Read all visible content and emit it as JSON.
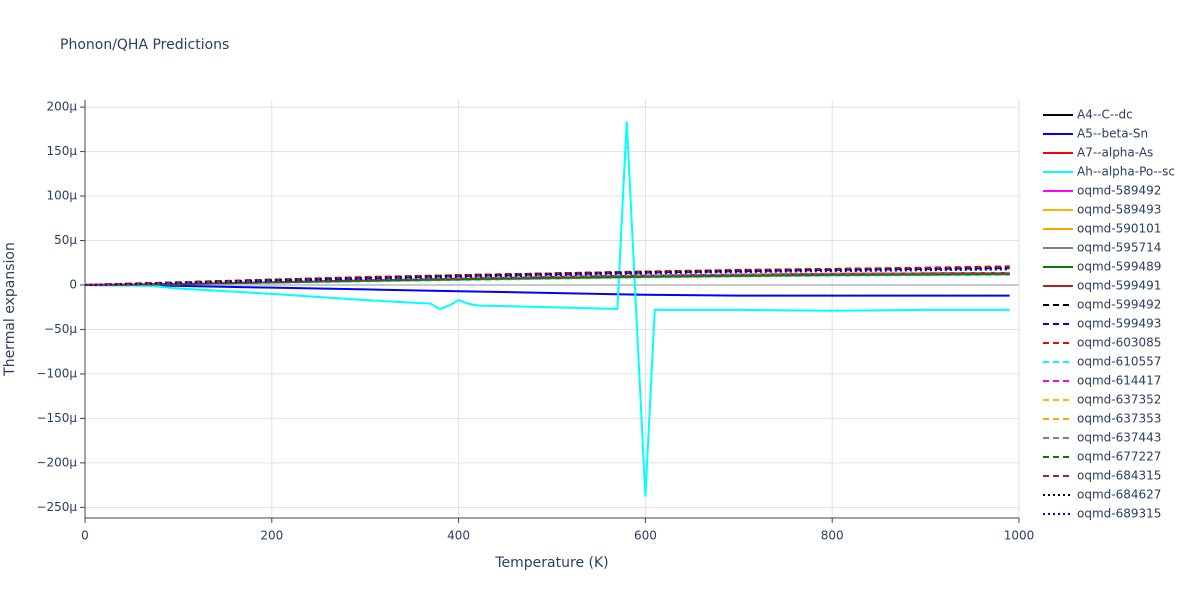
{
  "chart_data": {
    "type": "line",
    "title": "Phonon/QHA Predictions",
    "x_label": "Temperature (K)",
    "y_label": "Thermal expansion",
    "xlim": [
      0,
      1000
    ],
    "xticks": [
      0,
      200,
      400,
      600,
      800,
      1000
    ],
    "ylim": [
      -0.000262,
      0.000208
    ],
    "yticks": [
      {
        "value": 0.0002,
        "label": "200μ"
      },
      {
        "value": 0.00015,
        "label": "150μ"
      },
      {
        "value": 0.0001,
        "label": "100μ"
      },
      {
        "value": 5e-05,
        "label": "50μ"
      },
      0,
      {
        "value": -5e-05,
        "label": "−50μ"
      },
      {
        "value": -0.0001,
        "label": "−100μ"
      },
      {
        "value": -0.00015,
        "label": "−150μ"
      },
      {
        "value": -0.0002,
        "label": "−200μ"
      },
      {
        "value": -0.00025,
        "label": "−250μ"
      }
    ],
    "grid": true,
    "legend": "right",
    "x": [
      0,
      100,
      200,
      300,
      400,
      500,
      600,
      700,
      800,
      900,
      990
    ],
    "series": [
      {
        "name": "A4--C--dc",
        "color": "#000000",
        "dash": "solid",
        "values": [
          0,
          1e-06,
          3e-06,
          5e-06,
          6.5e-06,
          8e-06,
          9.5e-06,
          1.05e-05,
          1.15e-05,
          1.2e-05,
          1.25e-05
        ]
      },
      {
        "name": "A5--beta-Sn",
        "color": "#0000ff",
        "dash": "solid",
        "values": [
          0,
          -1e-06,
          -3e-06,
          -5e-06,
          -7e-06,
          -9e-06,
          -1.1e-05,
          -1.2e-05,
          -1.2e-05,
          -1.2e-05,
          -1.2e-05
        ]
      },
      {
        "name": "A7--alpha-As",
        "color": "#ff0000",
        "dash": "solid",
        "values": [
          0,
          1e-06,
          3e-06,
          5e-06,
          7e-06,
          8.5e-06,
          1e-05,
          1.1e-05,
          1.2e-05,
          1.25e-05,
          1.3e-05
        ]
      },
      {
        "name": "Ah--alpha-Po--sc",
        "color": "#00ffff",
        "dash": "solid",
        "x": [
          0,
          70,
          100,
          200,
          300,
          370,
          380,
          390,
          400,
          410,
          420,
          500,
          570,
          580,
          600,
          610,
          700,
          800,
          900,
          990
        ],
        "values": [
          0,
          -1e-06,
          -4e-06,
          -1e-05,
          -1.7e-05,
          -2.1e-05,
          -2.7e-05,
          -2.3e-05,
          -1.7e-05,
          -2.1e-05,
          -2.3e-05,
          -2.5e-05,
          -2.7e-05,
          0.000184,
          -0.000238,
          -2.8e-05,
          -2.8e-05,
          -2.9e-05,
          -2.8e-05,
          -2.8e-05
        ]
      },
      {
        "name": "oqmd-589492",
        "color": "#ff00ff",
        "dash": "solid",
        "values": [
          0,
          1e-06,
          3e-06,
          5e-06,
          7e-06,
          9e-06,
          1.05e-05,
          1.15e-05,
          1.25e-05,
          1.3e-05,
          1.35e-05
        ]
      },
      {
        "name": "oqmd-589493",
        "color": "#ffb300",
        "dash": "solid",
        "values": [
          0,
          1e-06,
          3e-06,
          5e-06,
          6.5e-06,
          8e-06,
          9.5e-06,
          1.05e-05,
          1.15e-05,
          1.2e-05,
          1.25e-05
        ]
      },
      {
        "name": "oqmd-590101",
        "color": "#ffa500",
        "dash": "solid",
        "values": [
          0,
          1e-06,
          3e-06,
          5e-06,
          7e-06,
          8.5e-06,
          1e-05,
          1.1e-05,
          1.2e-05,
          1.25e-05,
          1.3e-05
        ]
      },
      {
        "name": "oqmd-595714",
        "color": "#808080",
        "dash": "solid",
        "values": [
          0,
          1e-06,
          3e-06,
          4.5e-06,
          6e-06,
          7.5e-06,
          9e-06,
          1e-05,
          1.1e-05,
          1.15e-05,
          1.2e-05
        ]
      },
      {
        "name": "oqmd-599489",
        "color": "#008000",
        "dash": "solid",
        "values": [
          0,
          1e-06,
          3e-06,
          5e-06,
          6.5e-06,
          8e-06,
          9.5e-06,
          1.05e-05,
          1.15e-05,
          1.2e-05,
          1.25e-05
        ]
      },
      {
        "name": "oqmd-599491",
        "color": "#b22222",
        "dash": "solid",
        "values": [
          0,
          1e-06,
          3e-06,
          5e-06,
          7e-06,
          9e-06,
          1.05e-05,
          1.15e-05,
          1.25e-05,
          1.3e-05,
          1.35e-05
        ]
      },
      {
        "name": "oqmd-599492",
        "color": "#000000",
        "dash": "dash",
        "values": [
          0,
          3e-06,
          6e-06,
          8.5e-06,
          1.1e-05,
          1.3e-05,
          1.5e-05,
          1.65e-05,
          1.8e-05,
          1.9e-05,
          2e-05
        ]
      },
      {
        "name": "oqmd-599493",
        "color": "#0000ff",
        "dash": "dash",
        "values": [
          0,
          2.5e-06,
          5e-06,
          7.5e-06,
          1e-05,
          1.2e-05,
          1.4e-05,
          1.55e-05,
          1.7e-05,
          1.8e-05,
          1.9e-05
        ]
      },
      {
        "name": "oqmd-603085",
        "color": "#ff0000",
        "dash": "dash",
        "values": [
          0,
          3e-06,
          6e-06,
          9e-06,
          1.1e-05,
          1.3e-05,
          1.5e-05,
          1.7e-05,
          1.8e-05,
          1.95e-05,
          2.1e-05
        ]
      },
      {
        "name": "oqmd-610557",
        "color": "#00ffff",
        "dash": "dash",
        "values": [
          0,
          1e-06,
          2.5e-06,
          4e-06,
          5.5e-06,
          7e-06,
          8.5e-06,
          9.5e-06,
          1.05e-05,
          1.1e-05,
          1.15e-05
        ]
      },
      {
        "name": "oqmd-614417",
        "color": "#ff00ff",
        "dash": "dash",
        "values": [
          0,
          1e-06,
          3e-06,
          5e-06,
          7e-06,
          9e-06,
          1.05e-05,
          1.15e-05,
          1.25e-05,
          1.3e-05,
          1.35e-05
        ]
      },
      {
        "name": "oqmd-637352",
        "color": "#ffb300",
        "dash": "dash",
        "values": [
          0,
          1e-06,
          3e-06,
          5e-06,
          7e-06,
          8.5e-06,
          1e-05,
          1.1e-05,
          1.2e-05,
          1.25e-05,
          1.3e-05
        ]
      },
      {
        "name": "oqmd-637353",
        "color": "#ffa500",
        "dash": "dash",
        "values": [
          0,
          1e-06,
          3e-06,
          5e-06,
          6.5e-06,
          8e-06,
          9.5e-06,
          1.05e-05,
          1.15e-05,
          1.2e-05,
          1.25e-05
        ]
      },
      {
        "name": "oqmd-637443",
        "color": "#808080",
        "dash": "dash",
        "values": [
          0,
          1e-06,
          3e-06,
          4.5e-06,
          6e-06,
          7.5e-06,
          9e-06,
          1e-05,
          1.1e-05,
          1.15e-05,
          1.2e-05
        ]
      },
      {
        "name": "oqmd-677227",
        "color": "#008000",
        "dash": "dash",
        "values": [
          0,
          1e-06,
          3e-06,
          5e-06,
          6.5e-06,
          8e-06,
          9.5e-06,
          1.05e-05,
          1.15e-05,
          1.2e-05,
          1.25e-05
        ]
      },
      {
        "name": "oqmd-684315",
        "color": "#b22222",
        "dash": "dash",
        "values": [
          0,
          3e-06,
          6e-06,
          8.5e-06,
          1.1e-05,
          1.3e-05,
          1.5e-05,
          1.65e-05,
          1.8e-05,
          1.9e-05,
          2.05e-05
        ]
      },
      {
        "name": "oqmd-684627",
        "color": "#000000",
        "dash": "dot",
        "values": [
          0,
          2.5e-06,
          5.5e-06,
          8e-06,
          1.05e-05,
          1.25e-05,
          1.45e-05,
          1.6e-05,
          1.7e-05,
          1.8e-05,
          1.9e-05
        ]
      },
      {
        "name": "oqmd-689315",
        "color": "#0000ff",
        "dash": "dot",
        "values": [
          0,
          2e-06,
          4.5e-06,
          7e-06,
          9e-06,
          1.1e-05,
          1.3e-05,
          1.45e-05,
          1.55e-05,
          1.65e-05,
          1.75e-05
        ]
      }
    ]
  }
}
